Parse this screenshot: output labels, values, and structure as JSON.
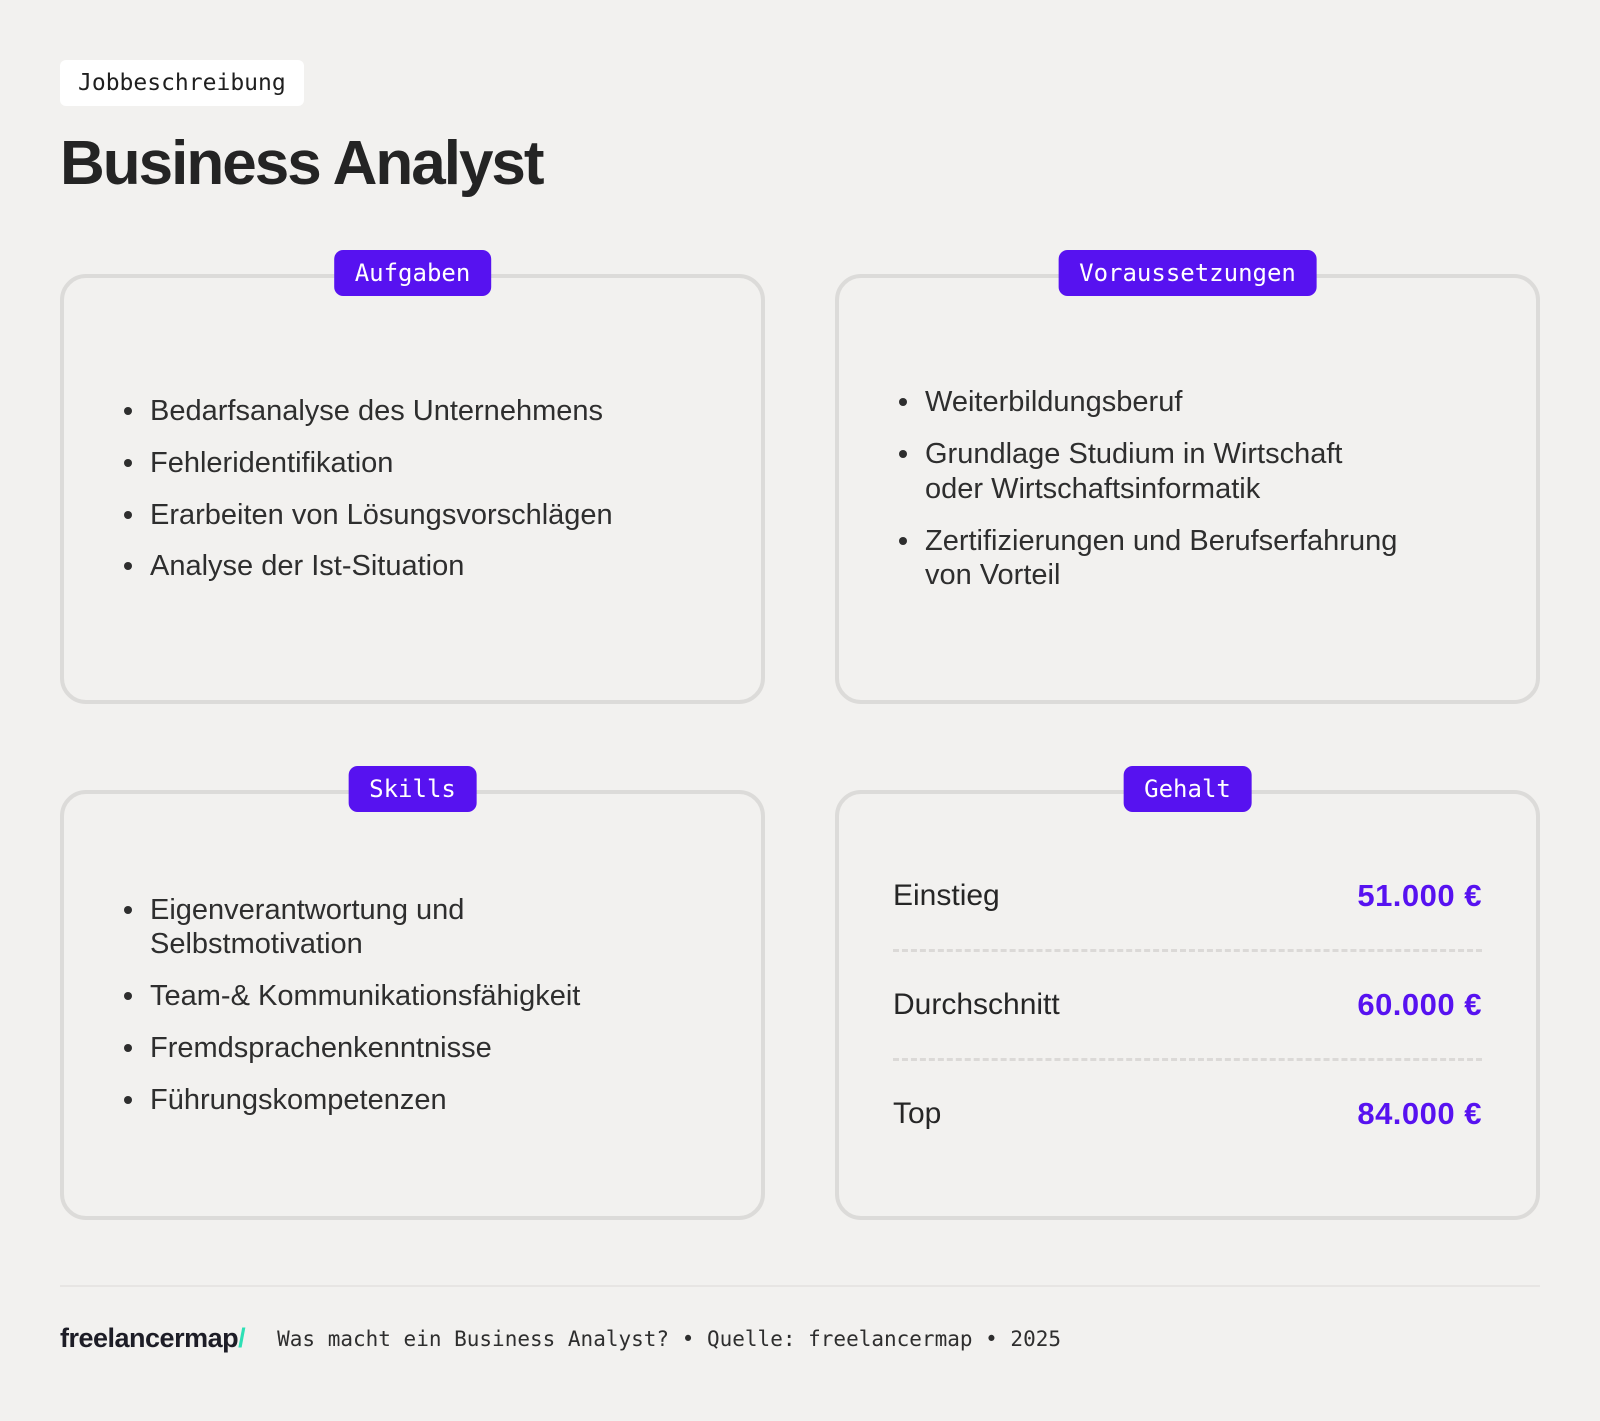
{
  "header": {
    "tag": "Jobbeschreibung",
    "title": "Business Analyst"
  },
  "cards": {
    "aufgaben": {
      "badge": "Aufgaben",
      "items": [
        "Bedarfsanalyse des Unternehmens",
        "Fehleridentifikation",
        "Erarbeiten von Lösungsvorschlägen",
        "Analyse der Ist-Situation"
      ]
    },
    "voraussetzungen": {
      "badge": "Voraussetzungen",
      "items": [
        "Weiterbildungsberuf",
        "Grundlage Studium in Wirtschaft\noder Wirtschaftsinformatik",
        "Zertifizierungen und Berufserfahrung\nvon Vorteil"
      ]
    },
    "skills": {
      "badge": "Skills",
      "items": [
        "Eigenverantwortung und\nSelbstmotivation",
        "Team-& Kommunikationsfähigkeit",
        "Fremdsprachenkenntnisse",
        "Führungskompetenzen"
      ]
    },
    "gehalt": {
      "badge": "Gehalt",
      "rows": [
        {
          "label": "Einstieg",
          "value": "51.000 €"
        },
        {
          "label": "Durchschnitt",
          "value": "60.000 €"
        },
        {
          "label": "Top",
          "value": "84.000 €"
        }
      ]
    }
  },
  "footer": {
    "logo": "freelancermap",
    "logo_slash": "/",
    "meta": "Was macht ein Business Analyst? • Quelle: freelancermap • 2025"
  },
  "colors": {
    "accent_purple": "#5712f0",
    "logo_teal": "#2de0b5",
    "background": "#f2f1ef",
    "card_border": "#dcdbd9",
    "text_dark": "#2e2e2e"
  }
}
